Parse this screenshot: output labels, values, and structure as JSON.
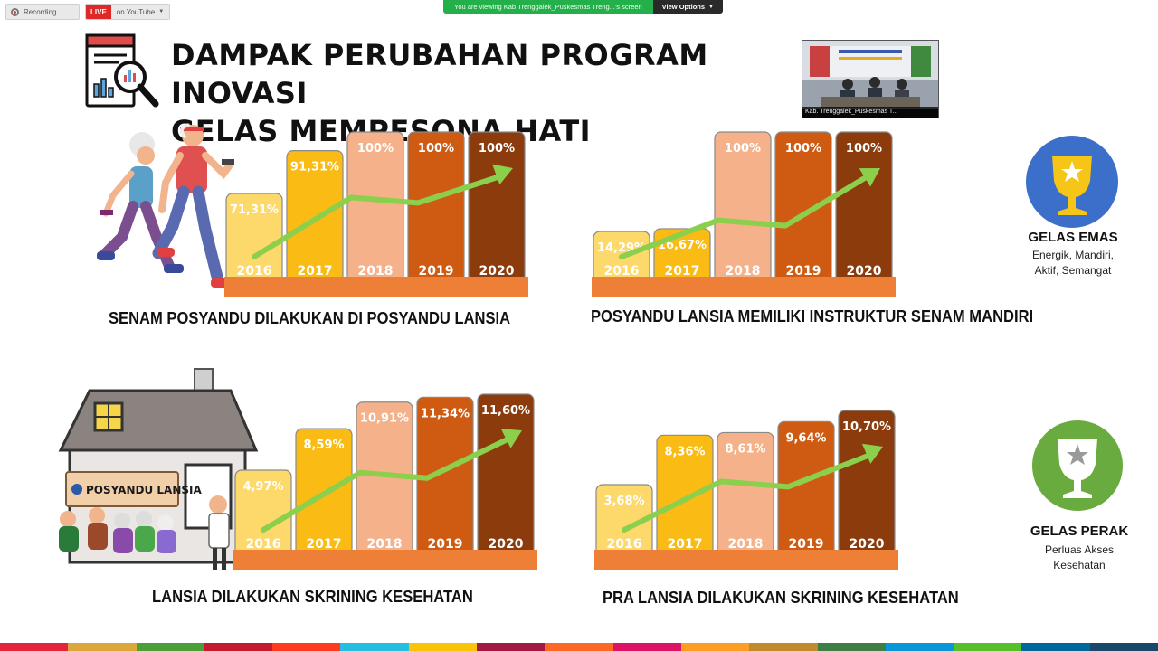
{
  "top_bar": {
    "recording_label": "Recording...",
    "live_badge": "LIVE",
    "live_where": "on YouTube",
    "viewing_text": "You are viewing Kab.Trenggalek_Puskesmas Treng...'s screen",
    "view_options": "View Options"
  },
  "slide": {
    "title_line1": "DAMPAK PERUBAHAN PROGRAM INOVASI",
    "title_line2": "GELAS MEMPESONA HATI"
  },
  "video_thumb": {
    "caption": "Kab. Trenggalek_Puskesmas T..."
  },
  "awards": [
    {
      "title": "GELAS EMAS",
      "desc_line1": "Energik, Mandiri,",
      "desc_line2": "Aktif, Semangat",
      "color": "#3b6fc9"
    },
    {
      "title": "GELAS PERAK",
      "desc_line1": "Perluas Akses",
      "desc_line2": "Kesehatan",
      "color": "#6aab3f"
    }
  ],
  "house_sign": "POSYANDU LANSIA",
  "chart_data": [
    {
      "type": "bar",
      "caption": "SENAM POSYANDU DILAKUKAN DI POSYANDU LANSIA",
      "categories": [
        "2016",
        "2017",
        "2018",
        "2019",
        "2020"
      ],
      "values": [
        71.31,
        91.31,
        100,
        100,
        100
      ],
      "value_labels": [
        "71,31%",
        "91,31%",
        "100%",
        "100%",
        "100%"
      ],
      "ylim": [
        0,
        100
      ]
    },
    {
      "type": "bar",
      "caption": "POSYANDU LANSIA MEMILIKI INSTRUKTUR SENAM MANDIRI",
      "categories": [
        "2016",
        "2017",
        "2018",
        "2019",
        "2020"
      ],
      "values": [
        14.29,
        16.67,
        100,
        100,
        100
      ],
      "value_labels": [
        "14,29%",
        "16,67%",
        "100%",
        "100%",
        "100%"
      ],
      "ylim": [
        0,
        100
      ]
    },
    {
      "type": "bar",
      "caption": "LANSIA DILAKUKAN SKRINING KESEHATAN",
      "categories": [
        "2016",
        "2017",
        "2018",
        "2019",
        "2020"
      ],
      "values": [
        4.97,
        8.59,
        10.91,
        11.34,
        11.6
      ],
      "value_labels": [
        "4,97%",
        "8,59%",
        "10,91%",
        "11,34%",
        "11,60%"
      ]
    },
    {
      "type": "bar",
      "caption": "PRA LANSIA DILAKUKAN SKRINING KESEHATAN",
      "categories": [
        "2016",
        "2017",
        "2018",
        "2019",
        "2020"
      ],
      "values": [
        3.68,
        8.36,
        8.61,
        9.64,
        10.7
      ],
      "value_labels": [
        "3,68%",
        "8,36%",
        "8,61%",
        "9,64%",
        "10,70%"
      ]
    }
  ],
  "colors": {
    "bars": [
      "#fdd86b",
      "#f9bb14",
      "#f5b28a",
      "#cf5b12",
      "#8b3b0c"
    ],
    "base": "#ee7f36",
    "arrow": "#8ccf4d"
  }
}
